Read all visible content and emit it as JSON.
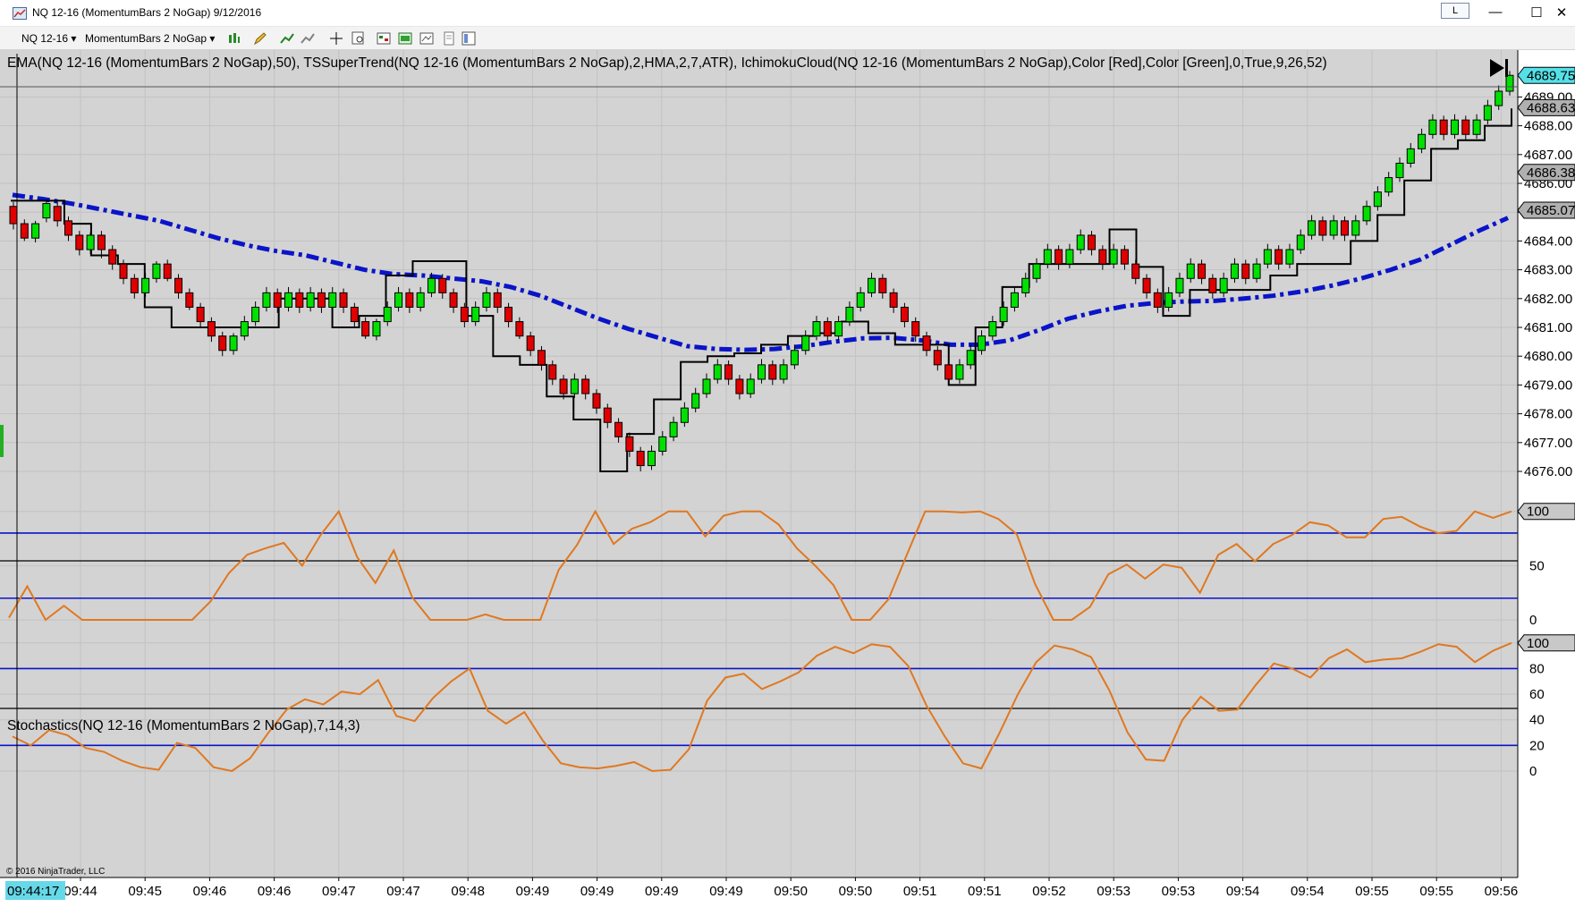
{
  "window": {
    "title": "NQ 12-16 (MomentumBars 2 NoGap)  9/12/2016",
    "l_button": "L",
    "minimize": "—",
    "maximize": "☐",
    "close": "✕"
  },
  "toolbar": {
    "instrument": "NQ 12-16",
    "bar_type": "MomentumBars 2 NoGap",
    "icons": [
      "bar-style-icon",
      "draw-pencil-icon",
      "add-indicator-icon",
      "add-strategy-icon",
      "crosshair-icon",
      "zoom-icon",
      "chart-trader-icon",
      "order-icon",
      "data-box-icon",
      "properties-icon",
      "window-linking-icon"
    ]
  },
  "chart": {
    "indicator_label": "EMA(NQ 12-16 (MomentumBars 2 NoGap),50), TSSuperTrend(NQ 12-16 (MomentumBars 2 NoGap),2,HMA,2,7,ATR), IchimokuCloud(NQ 12-16 (MomentumBars 2 NoGap),Color [Red],Color [Green],0,True,9,26,52)",
    "stochastics_label": "Stochastics(NQ 12-16 (MomentumBars 2 NoGap),7,14,3)",
    "copyright": "© 2016 NinjaTrader, LLC",
    "cursor_time": "09:44:17",
    "colors": {
      "up": "#00e000",
      "down": "#e00000",
      "ema": "#0a14c8",
      "supertrend": "#000000",
      "osc": "#e07820",
      "level_lines": "#0a14c8",
      "background": "#d3d3d3",
      "cursor_tag": "#66d9e8"
    }
  },
  "chart_data": {
    "type": "candlestick",
    "instrument": "NQ 12-16",
    "price_axis": {
      "ticks": [
        "4676.00",
        "4677.00",
        "4678.00",
        "4679.00",
        "4680.00",
        "4681.00",
        "4682.00",
        "4683.00",
        "4684.00",
        "4685.00",
        "4686.00",
        "4687.00",
        "4688.00",
        "4689.00"
      ],
      "ylim": [
        4675.5,
        4690.0
      ]
    },
    "price_markers": [
      {
        "label": "4689.75",
        "color": "#55e0e8"
      },
      {
        "label": "4688.63",
        "color": "#b0b0b0"
      },
      {
        "label": "4686.38",
        "color": "#b0b0b0"
      },
      {
        "label": "4685.07",
        "color": "#b0b0b0"
      }
    ],
    "time_labels": [
      "09:44",
      "09:45",
      "09:46",
      "09:46",
      "09:47",
      "09:47",
      "09:48",
      "09:49",
      "09:49",
      "09:49",
      "09:49",
      "09:50",
      "09:50",
      "09:51",
      "09:51",
      "09:52",
      "09:53",
      "09:53",
      "09:54",
      "09:54",
      "09:55",
      "09:55",
      "09:56"
    ],
    "ema_label_at_panel_left": 4685.6,
    "osc_panel": {
      "ticks": [
        "0",
        "50",
        "100"
      ],
      "levels": [
        20,
        80
      ],
      "marker": "100",
      "series": [
        2,
        31,
        0,
        13,
        0,
        0,
        0,
        0,
        0,
        0,
        0,
        17,
        43,
        60,
        66,
        71,
        50,
        78,
        100,
        58,
        34,
        64,
        21,
        0,
        0,
        0,
        5,
        0,
        0,
        0,
        46,
        69,
        100,
        70,
        84,
        90,
        100,
        100,
        77,
        96,
        100,
        100,
        88,
        66,
        50,
        32,
        0,
        0,
        19,
        60,
        100,
        100,
        99,
        100,
        93,
        79,
        33,
        0,
        0,
        12,
        42,
        51,
        38,
        51,
        48,
        25,
        60,
        70,
        54,
        70,
        78,
        90,
        87,
        76,
        76,
        93,
        95,
        86,
        80,
        82,
        100,
        94,
        100
      ]
    },
    "stoch_panel": {
      "ticks": [
        "0",
        "20",
        "40",
        "60",
        "80",
        "100"
      ],
      "levels": [
        20,
        80
      ],
      "marker": "100",
      "series": [
        27,
        20,
        32,
        28,
        18,
        15,
        8,
        3,
        1,
        22,
        18,
        3,
        0,
        10,
        30,
        48,
        56,
        52,
        62,
        60,
        71,
        43,
        39,
        57,
        70,
        80,
        47,
        37,
        46,
        24,
        6,
        3,
        2,
        4,
        7,
        0,
        1,
        17,
        55,
        73,
        76,
        64,
        70,
        77,
        90,
        97,
        92,
        99,
        97,
        82,
        51,
        27,
        6,
        2,
        30,
        60,
        85,
        98,
        95,
        89,
        63,
        30,
        9,
        8,
        40,
        58,
        47,
        48,
        67,
        84,
        80,
        73,
        88,
        95,
        85,
        87,
        88,
        93,
        99,
        97,
        85,
        94,
        100
      ]
    },
    "series": [
      {
        "name": "EMA(50)",
        "values": [
          4685.6,
          4685.46,
          4685.3,
          4685.1,
          4684.9,
          4684.7,
          4684.4,
          4684.1,
          4683.85,
          4683.65,
          4683.5,
          4683.25,
          4683.0,
          4682.85,
          4682.8,
          4682.7,
          4682.6,
          4682.4,
          4682.1,
          4681.7,
          4681.3,
          4680.95,
          4680.65,
          4680.35,
          4680.25,
          4680.22,
          4680.25,
          4680.35,
          4680.5,
          4680.62,
          4680.64,
          4680.55,
          4680.4,
          4680.4,
          4680.55,
          4680.9,
          4681.3,
          4681.55,
          4681.75,
          4681.85,
          4681.9,
          4681.92,
          4682.0,
          4682.1,
          4682.25,
          4682.45,
          4682.7,
          4683.0,
          4683.35,
          4683.85,
          4684.35,
          4684.8
        ]
      },
      {
        "name": "TSSuperTrend",
        "values": [
          4685.4,
          4685.4,
          4684.6,
          4683.5,
          4683.2,
          4681.7,
          4681.0,
          4681.0,
          4681.0,
          4681.0,
          4682.0,
          4682.0,
          4681.0,
          4681.4,
          4682.8,
          4683.3,
          4683.3,
          4681.4,
          4680.0,
          4679.7,
          4678.6,
          4677.8,
          4676.0,
          4677.3,
          4678.5,
          4679.8,
          4680.0,
          4680.1,
          4680.4,
          4680.7,
          4680.8,
          4681.2,
          4680.8,
          4680.4,
          4680.4,
          4679.0,
          4681.0,
          4682.4,
          4683.2,
          4683.2,
          4683.2,
          4684.4,
          4683.1,
          4681.4,
          4682.3,
          4682.3,
          4682.3,
          4682.8,
          4683.2,
          4683.2,
          4684.0,
          4684.9,
          4686.1,
          4687.2,
          4687.5,
          4688.0,
          4688.6
        ]
      },
      {
        "name": "Price (bars)",
        "values": [
          4684.5,
          4684.0,
          4684.0,
          4684.5,
          4685.0,
          4684.5,
          4684.2,
          4683.6,
          4683.4,
          4683.0,
          4682.4,
          4682.2,
          4681.7,
          4681.2,
          4680.6,
          4680.2,
          4680.6,
          4681.2,
          4681.6,
          4681.6,
          4681.6,
          4681.6,
          4681.6,
          4681.6,
          4681.6,
          4681.1,
          4680.8,
          4681.2,
          4681.6,
          4681.8,
          4682.0,
          4681.6,
          4681.2,
          4681.6,
          4681.9,
          4681.4,
          4680.8,
          4680.4,
          4679.8,
          4679.3,
          4679.0,
          4679.0,
          4678.6,
          4678.2,
          4677.6,
          4677.2,
          4676.6,
          4676.6,
          4677.1,
          4677.6,
          4678.2,
          4678.6,
          4679.0,
          4679.0,
          4679.0,
          4679.2,
          4679.4,
          4679.8,
          4680.6,
          4681.1,
          4681.4,
          4681.8,
          4682.0,
          4681.5,
          4680.9,
          4680.4,
          4679.9,
          4679.6,
          4679.4,
          4679.9,
          4680.4,
          4680.9,
          4681.4,
          4681.8,
          4682.4,
          4682.9,
          4683.4,
          4683.8,
          4684.1,
          4683.8,
          4683.8,
          4683.5,
          4683.2,
          4682.6,
          4682.1,
          4681.6,
          4681.8,
          4682.3,
          4682.6,
          4682.8,
          4682.5,
          4682.4,
          4682.7,
          4683.1,
          4683.6,
          4683.6,
          4683.2,
          4683.5,
          4684.0,
          4684.5,
          4684.5,
          4684.5,
          4684.9,
          4685.4,
          4685.9,
          4686.4,
          4686.9,
          4687.4,
          4687.9,
          4688.4,
          4688.5,
          4688.3,
          4688.3,
          4688.5,
          4689.0,
          4689.5,
          4689.75
        ]
      }
    ],
    "candles": [
      [
        4685.2,
        4684.6,
        4684.4,
        "d"
      ],
      [
        4684.6,
        4684.1,
        4684.0,
        "d"
      ],
      [
        4684.1,
        4684.6,
        4684.7,
        "u"
      ],
      [
        4684.8,
        4685.3,
        4685.4,
        "u"
      ],
      [
        4685.2,
        4684.7,
        4684.5,
        "d"
      ],
      [
        4684.7,
        4684.2,
        4684.0,
        "d"
      ],
      [
        4684.2,
        4683.7,
        4683.5,
        "d"
      ],
      [
        4683.7,
        4684.2,
        4684.3,
        "u"
      ],
      [
        4684.2,
        4683.7,
        4683.4,
        "d"
      ],
      [
        4683.7,
        4683.2,
        4683.0,
        "d"
      ],
      [
        4683.2,
        4682.7,
        4682.5,
        "d"
      ],
      [
        4682.7,
        4682.2,
        4682.0,
        "d"
      ],
      [
        4682.2,
        4682.7,
        4682.9,
        "u"
      ],
      [
        4682.7,
        4683.2,
        4683.3,
        "u"
      ],
      [
        4683.2,
        4682.7,
        4682.6,
        "d"
      ],
      [
        4682.7,
        4682.2,
        4682.0,
        "d"
      ],
      [
        4682.2,
        4681.7,
        4681.6,
        "d"
      ],
      [
        4681.7,
        4681.2,
        4681.0,
        "d"
      ],
      [
        4681.2,
        4680.7,
        4680.5,
        "d"
      ],
      [
        4680.7,
        4680.2,
        4680.0,
        "d"
      ],
      [
        4680.2,
        4680.7,
        4680.8,
        "u"
      ],
      [
        4680.7,
        4681.2,
        4681.4,
        "u"
      ],
      [
        4681.2,
        4681.7,
        4681.9,
        "u"
      ],
      [
        4681.7,
        4682.2,
        4682.4,
        "u"
      ],
      [
        4682.2,
        4681.7,
        4681.5,
        "d"
      ],
      [
        4681.7,
        4682.2,
        4682.4,
        "u"
      ],
      [
        4682.2,
        4681.7,
        4681.5,
        "d"
      ],
      [
        4681.7,
        4682.2,
        4682.4,
        "u"
      ],
      [
        4682.2,
        4681.7,
        4681.5,
        "d"
      ],
      [
        4681.7,
        4682.2,
        4682.4,
        "u"
      ],
      [
        4682.2,
        4681.7,
        4681.5,
        "d"
      ],
      [
        4681.7,
        4681.2,
        4681.0,
        "d"
      ],
      [
        4681.2,
        4680.7,
        4680.6,
        "d"
      ],
      [
        4680.7,
        4681.2,
        4681.3,
        "u"
      ],
      [
        4681.2,
        4681.7,
        4681.9,
        "u"
      ],
      [
        4681.7,
        4682.2,
        4682.4,
        "u"
      ],
      [
        4682.2,
        4681.7,
        4681.5,
        "d"
      ],
      [
        4681.7,
        4682.2,
        4682.4,
        "u"
      ],
      [
        4682.2,
        4682.7,
        4682.9,
        "u"
      ],
      [
        4682.7,
        4682.2,
        4682.0,
        "d"
      ],
      [
        4682.2,
        4681.7,
        4681.5,
        "d"
      ],
      [
        4681.7,
        4681.2,
        4681.0,
        "d"
      ],
      [
        4681.2,
        4681.7,
        4681.9,
        "u"
      ],
      [
        4681.7,
        4682.2,
        4682.4,
        "u"
      ],
      [
        4682.2,
        4681.7,
        4681.5,
        "d"
      ],
      [
        4681.7,
        4681.2,
        4681.0,
        "d"
      ],
      [
        4681.2,
        4680.7,
        4680.6,
        "d"
      ],
      [
        4680.7,
        4680.2,
        4680.0,
        "d"
      ],
      [
        4680.2,
        4679.7,
        4679.5,
        "d"
      ],
      [
        4679.7,
        4679.2,
        4679.0,
        "d"
      ],
      [
        4679.2,
        4678.7,
        4678.5,
        "d"
      ],
      [
        4678.7,
        4679.2,
        4679.4,
        "u"
      ],
      [
        4679.2,
        4678.7,
        4678.5,
        "d"
      ],
      [
        4678.7,
        4678.2,
        4678.0,
        "d"
      ],
      [
        4678.2,
        4677.7,
        4677.5,
        "d"
      ],
      [
        4677.7,
        4677.2,
        4677.0,
        "d"
      ],
      [
        4677.2,
        4676.7,
        4676.5,
        "d"
      ],
      [
        4676.7,
        4676.2,
        4676.0,
        "d"
      ],
      [
        4676.2,
        4676.7,
        4676.9,
        "u"
      ],
      [
        4676.7,
        4677.2,
        4677.4,
        "u"
      ],
      [
        4677.2,
        4677.7,
        4677.9,
        "u"
      ],
      [
        4677.7,
        4678.2,
        4678.4,
        "u"
      ],
      [
        4678.2,
        4678.7,
        4678.9,
        "u"
      ],
      [
        4678.7,
        4679.2,
        4679.4,
        "u"
      ],
      [
        4679.2,
        4679.7,
        4679.9,
        "u"
      ],
      [
        4679.7,
        4679.2,
        4679.0,
        "d"
      ],
      [
        4679.2,
        4678.7,
        4678.5,
        "d"
      ],
      [
        4678.7,
        4679.2,
        4679.4,
        "u"
      ],
      [
        4679.2,
        4679.7,
        4679.9,
        "u"
      ],
      [
        4679.7,
        4679.2,
        4679.0,
        "d"
      ],
      [
        4679.2,
        4679.7,
        4679.9,
        "u"
      ],
      [
        4679.7,
        4680.2,
        4680.4,
        "u"
      ],
      [
        4680.2,
        4680.7,
        4680.9,
        "u"
      ],
      [
        4680.7,
        4681.2,
        4681.4,
        "u"
      ],
      [
        4681.2,
        4680.7,
        4680.5,
        "d"
      ],
      [
        4680.7,
        4681.2,
        4681.4,
        "u"
      ],
      [
        4681.2,
        4681.7,
        4681.9,
        "u"
      ],
      [
        4681.7,
        4682.2,
        4682.4,
        "u"
      ],
      [
        4682.2,
        4682.7,
        4682.9,
        "u"
      ],
      [
        4682.7,
        4682.2,
        4682.0,
        "d"
      ],
      [
        4682.2,
        4681.7,
        4681.5,
        "d"
      ],
      [
        4681.7,
        4681.2,
        4681.0,
        "d"
      ],
      [
        4681.2,
        4680.7,
        4680.5,
        "d"
      ],
      [
        4680.7,
        4680.2,
        4680.0,
        "d"
      ],
      [
        4680.2,
        4679.7,
        4679.5,
        "d"
      ],
      [
        4679.7,
        4679.2,
        4679.0,
        "d"
      ],
      [
        4679.2,
        4679.7,
        4679.9,
        "u"
      ],
      [
        4679.7,
        4680.2,
        4680.4,
        "u"
      ],
      [
        4680.2,
        4680.7,
        4680.9,
        "u"
      ],
      [
        4680.7,
        4681.2,
        4681.4,
        "u"
      ],
      [
        4681.2,
        4681.7,
        4681.9,
        "u"
      ],
      [
        4681.7,
        4682.2,
        4682.4,
        "u"
      ],
      [
        4682.2,
        4682.7,
        4682.9,
        "u"
      ],
      [
        4682.7,
        4683.2,
        4683.4,
        "u"
      ],
      [
        4683.2,
        4683.7,
        4683.9,
        "u"
      ],
      [
        4683.7,
        4683.2,
        4683.0,
        "d"
      ],
      [
        4683.2,
        4683.7,
        4683.9,
        "u"
      ],
      [
        4683.7,
        4684.2,
        4684.4,
        "u"
      ],
      [
        4684.2,
        4683.7,
        4683.5,
        "d"
      ],
      [
        4683.7,
        4683.2,
        4683.0,
        "d"
      ],
      [
        4683.2,
        4683.7,
        4683.9,
        "u"
      ],
      [
        4683.7,
        4683.2,
        4683.0,
        "d"
      ],
      [
        4683.2,
        4682.7,
        4682.5,
        "d"
      ],
      [
        4682.7,
        4682.2,
        4682.0,
        "d"
      ],
      [
        4682.2,
        4681.7,
        4681.5,
        "d"
      ],
      [
        4681.7,
        4682.2,
        4682.4,
        "u"
      ],
      [
        4682.2,
        4682.7,
        4682.9,
        "u"
      ],
      [
        4682.7,
        4683.2,
        4683.4,
        "u"
      ],
      [
        4683.2,
        4682.7,
        4682.5,
        "d"
      ],
      [
        4682.7,
        4682.2,
        4682.0,
        "d"
      ],
      [
        4682.2,
        4682.7,
        4682.9,
        "u"
      ],
      [
        4682.7,
        4683.2,
        4683.4,
        "u"
      ],
      [
        4683.2,
        4682.7,
        4682.5,
        "d"
      ],
      [
        4682.7,
        4683.2,
        4683.4,
        "u"
      ],
      [
        4683.2,
        4683.7,
        4683.9,
        "u"
      ],
      [
        4683.7,
        4683.2,
        4683.0,
        "d"
      ],
      [
        4683.2,
        4683.7,
        4683.9,
        "u"
      ],
      [
        4683.7,
        4684.2,
        4684.4,
        "u"
      ],
      [
        4684.2,
        4684.7,
        4684.9,
        "u"
      ],
      [
        4684.7,
        4684.2,
        4684.0,
        "d"
      ],
      [
        4684.2,
        4684.7,
        4684.9,
        "u"
      ],
      [
        4684.7,
        4684.2,
        4684.0,
        "d"
      ],
      [
        4684.2,
        4684.7,
        4684.9,
        "u"
      ],
      [
        4684.7,
        4685.2,
        4685.4,
        "u"
      ],
      [
        4685.2,
        4685.7,
        4685.9,
        "u"
      ],
      [
        4685.7,
        4686.2,
        4686.4,
        "u"
      ],
      [
        4686.2,
        4686.7,
        4686.9,
        "u"
      ],
      [
        4686.7,
        4687.2,
        4687.4,
        "u"
      ],
      [
        4687.2,
        4687.7,
        4687.9,
        "u"
      ],
      [
        4687.7,
        4688.2,
        4688.4,
        "u"
      ],
      [
        4688.2,
        4687.7,
        4687.5,
        "d"
      ],
      [
        4687.7,
        4688.2,
        4688.4,
        "u"
      ],
      [
        4688.2,
        4687.7,
        4687.5,
        "d"
      ],
      [
        4687.7,
        4688.2,
        4688.4,
        "u"
      ],
      [
        4688.2,
        4688.7,
        4688.9,
        "u"
      ],
      [
        4688.7,
        4689.2,
        4689.4,
        "u"
      ],
      [
        4689.2,
        4689.75,
        4689.9,
        "u"
      ]
    ]
  }
}
